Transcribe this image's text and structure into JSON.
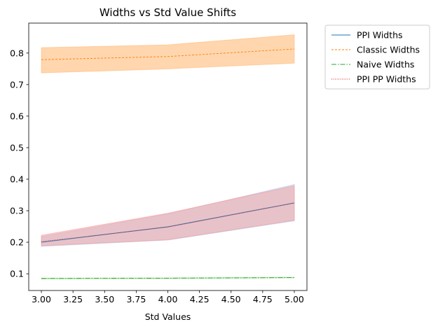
{
  "chart_data": {
    "type": "line",
    "title": "Widths vs Std Value Shifts",
    "xlabel": "Std Values",
    "ylabel": "",
    "x": [
      3.0,
      4.0,
      5.0
    ],
    "xlim": [
      2.9,
      5.1
    ],
    "ylim": [
      0.047,
      0.895
    ],
    "xticks": [
      3.0,
      3.25,
      3.5,
      3.75,
      4.0,
      4.25,
      4.5,
      4.75,
      5.0
    ],
    "xtick_labels": [
      "3.00",
      "3.25",
      "3.50",
      "3.75",
      "4.00",
      "4.25",
      "4.50",
      "4.75",
      "5.00"
    ],
    "yticks": [
      0.1,
      0.2,
      0.3,
      0.4,
      0.5,
      0.6,
      0.7,
      0.8
    ],
    "ytick_labels": [
      "0.1",
      "0.2",
      "0.3",
      "0.4",
      "0.5",
      "0.6",
      "0.7",
      "0.8"
    ],
    "grid": false,
    "legend_placement": "outside-upper-right",
    "series": [
      {
        "name": "PPI Widths",
        "values": [
          0.2,
          0.249,
          0.325
        ],
        "band_low": [
          0.187,
          0.207,
          0.268
        ],
        "band_high": [
          0.218,
          0.29,
          0.383
        ],
        "color": "#1f77b4",
        "dash": "",
        "band_color": "#aec7e8",
        "band_opacity": 0.5
      },
      {
        "name": "Classic Widths",
        "values": [
          0.779,
          0.789,
          0.813
        ],
        "band_low": [
          0.737,
          0.75,
          0.768
        ],
        "band_high": [
          0.817,
          0.826,
          0.858
        ],
        "color": "#ff7f0e",
        "dash": "3,2",
        "band_color": "#ffbb78",
        "band_opacity": 0.6
      },
      {
        "name": "Naive Widths",
        "values": [
          0.085,
          0.086,
          0.088
        ],
        "band_low": [
          0.084,
          0.085,
          0.087
        ],
        "band_high": [
          0.086,
          0.087,
          0.089
        ],
        "color": "#2ca02c",
        "dash": "7,2,1.5,2",
        "band_color": "#98df8a",
        "band_opacity": 0.5
      },
      {
        "name": "PPI PP Widths",
        "values": [
          0.202,
          0.248,
          0.324
        ],
        "band_low": [
          0.189,
          0.208,
          0.27
        ],
        "band_high": [
          0.222,
          0.292,
          0.379
        ],
        "color": "#d62728",
        "dash": "1,1.5",
        "band_color": "#ff9896",
        "band_opacity": 0.45
      }
    ]
  }
}
